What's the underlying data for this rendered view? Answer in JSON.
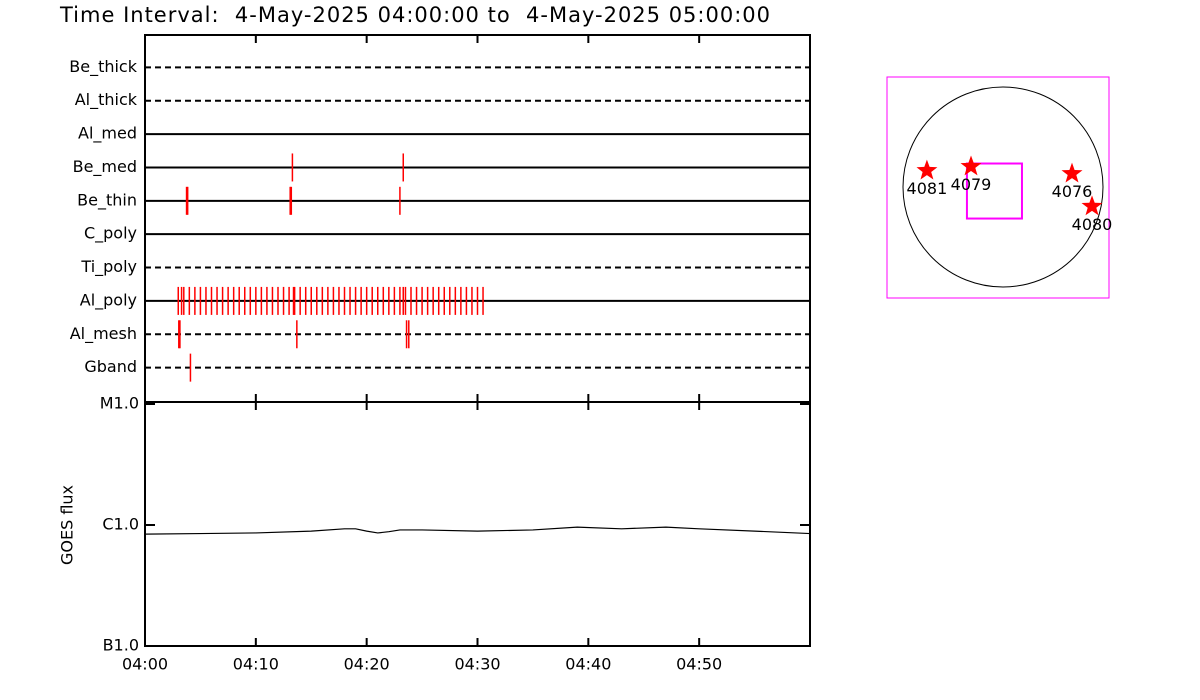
{
  "chart_data": [
    {
      "type": "timeline",
      "title": "Time Interval:  4-May-2025 04:00:00 to  4-May-2025 05:00:00",
      "xlim": [
        0,
        60
      ],
      "xticks": [
        {
          "value": 0,
          "label": "04:00"
        },
        {
          "value": 10,
          "label": "04:10"
        },
        {
          "value": 20,
          "label": "04:20"
        },
        {
          "value": 30,
          "label": "04:30"
        },
        {
          "value": 40,
          "label": "04:40"
        },
        {
          "value": 50,
          "label": "04:50"
        }
      ],
      "color": "#ff0000",
      "series": [
        {
          "name": "Be_thick",
          "style": "dashed",
          "values": []
        },
        {
          "name": "Al_thick",
          "style": "dashed",
          "values": []
        },
        {
          "name": "Al_med",
          "style": "solid",
          "values": []
        },
        {
          "name": "Be_med",
          "style": "solid",
          "values": [
            13.3,
            23.3
          ]
        },
        {
          "name": "Be_thin",
          "style": "solid",
          "values": [
            3.75,
            3.85,
            13.1,
            13.2,
            23.0
          ]
        },
        {
          "name": "C_poly",
          "style": "solid",
          "values": []
        },
        {
          "name": "Ti_poly",
          "style": "dashed",
          "values": []
        },
        {
          "name": "Al_poly",
          "style": "solid",
          "values": [
            3.0,
            3.3,
            3.5,
            4,
            4.5,
            5,
            5.5,
            6,
            6.5,
            7,
            7.5,
            8,
            8.5,
            9,
            9.5,
            10,
            10.5,
            11,
            11.5,
            12,
            12.5,
            13,
            13.4,
            13.5,
            14,
            14.5,
            15,
            15.5,
            16,
            16.5,
            17,
            17.5,
            18,
            18.5,
            19,
            19.5,
            20,
            20.5,
            21,
            21.5,
            22,
            22.5,
            23,
            23.3,
            23.5,
            24,
            24.5,
            25,
            25.5,
            26,
            26.5,
            27,
            27.5,
            28,
            28.5,
            29,
            29.5,
            30,
            30.5
          ]
        },
        {
          "name": "Al_mesh",
          "style": "dashed",
          "values": [
            3.05,
            3.15,
            13.7,
            23.6,
            23.8
          ]
        },
        {
          "name": "Gband",
          "style": "dashed",
          "values": [
            4.1
          ]
        }
      ]
    },
    {
      "type": "line",
      "y_label": "GOES flux",
      "log_y": true,
      "xlim": [
        0,
        60
      ],
      "xticks": [
        {
          "value": 0,
          "label": "04:00"
        },
        {
          "value": 10,
          "label": "04:10"
        },
        {
          "value": 20,
          "label": "04:20"
        },
        {
          "value": 30,
          "label": "04:30"
        },
        {
          "value": 40,
          "label": "04:40"
        },
        {
          "value": 50,
          "label": "04:50"
        }
      ],
      "ylim": [
        1e-07,
        1e-05
      ],
      "yticks": [
        {
          "value": 1e-07,
          "label": "B1.0"
        },
        {
          "value": 1e-06,
          "label": "C1.0"
        },
        {
          "value": 1e-05,
          "label": "M1.0"
        }
      ],
      "color": "#000000",
      "x": [
        0,
        5,
        10,
        15,
        18,
        19,
        20,
        21,
        22,
        23,
        25,
        30,
        35,
        39,
        43,
        47,
        50,
        55,
        60
      ],
      "values": [
        8.4e-07,
        8.5e-07,
        8.6e-07,
        8.9e-07,
        9.3e-07,
        9.3e-07,
        8.9e-07,
        8.6e-07,
        8.8e-07,
        9.1e-07,
        9.1e-07,
        8.9e-07,
        9.1e-07,
        9.6e-07,
        9.3e-07,
        9.6e-07,
        9.3e-07,
        8.9e-07,
        8.5e-07
      ]
    },
    {
      "type": "map",
      "xlim": [
        -1065,
        1065
      ],
      "ylim": [
        -1065,
        1065
      ],
      "frame_color": "#ff00ff",
      "marker_color": "#ff0000",
      "fov": {
        "x": -34,
        "y": -34,
        "size": 528
      },
      "regions": [
        {
          "label": "4081",
          "x": -682,
          "y": 163
        },
        {
          "label": "4079",
          "x": -259,
          "y": 202
        },
        {
          "label": "4076",
          "x": 710,
          "y": 134
        },
        {
          "label": "4080",
          "x": 902,
          "y": -182
        }
      ]
    }
  ]
}
